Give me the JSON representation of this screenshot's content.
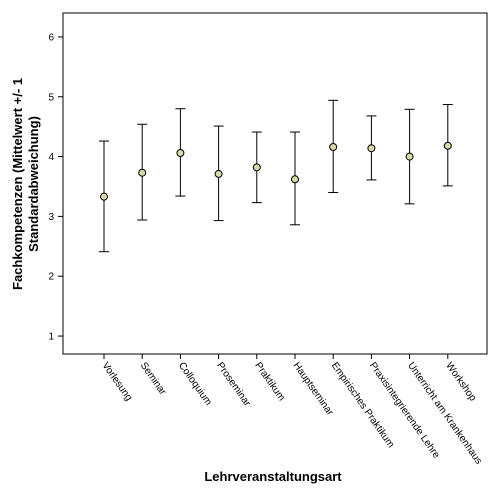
{
  "chart_data": {
    "type": "scatter",
    "subtype": "error-bar",
    "title": "",
    "xlabel": "Lehrveranstaltungsart",
    "ylabel_lines": [
      "Fachkompetenzen (Mittelwert +/- 1",
      "Standardabweichung)"
    ],
    "ylim": [
      0.7,
      6.4
    ],
    "yticks": [
      1,
      2,
      3,
      4,
      5,
      6
    ],
    "categories": [
      "Vorlesung",
      "Seminar",
      "Colloquium",
      "Proseminar",
      "Praktikum",
      "Hauptseminar",
      "Empirisches Praktikum",
      "Praxisintegrierende Lehre",
      "Unterricht am Krankenhaus",
      "Workshop"
    ],
    "means": [
      3.33,
      3.73,
      4.06,
      3.71,
      3.82,
      3.62,
      4.16,
      4.14,
      4.0,
      4.18
    ],
    "lower": [
      2.41,
      2.94,
      3.34,
      2.93,
      3.23,
      2.86,
      3.4,
      3.61,
      3.21,
      3.51
    ],
    "upper": [
      4.26,
      4.54,
      4.8,
      4.51,
      4.41,
      4.41,
      4.94,
      4.68,
      4.79,
      4.87
    ],
    "marker_color": "#d8d8a8",
    "grid": false,
    "legend": "none"
  }
}
